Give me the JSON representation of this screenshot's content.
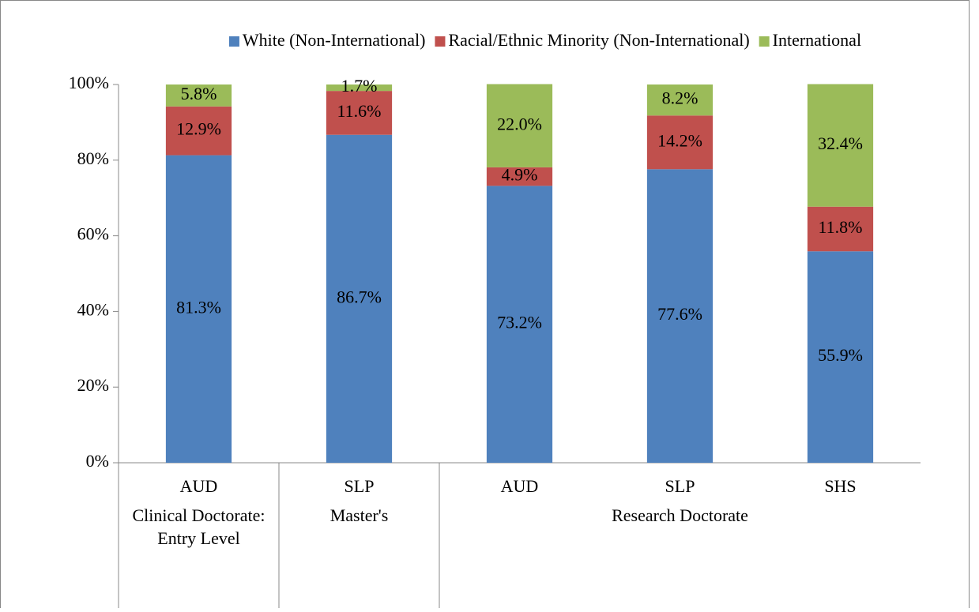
{
  "chart_data": {
    "type": "stacked_bar",
    "categories": [
      "AUD",
      "SLP",
      "AUD",
      "SLP",
      "SHS"
    ],
    "category_groups": [
      "Clinical Doctorate: Entry Level",
      "Master's",
      "Research Doctorate",
      "Research Doctorate",
      "Research Doctorate"
    ],
    "series": [
      {
        "name": "White (Non-International)",
        "color": "#4f81bd",
        "values": [
          81.3,
          86.7,
          73.2,
          77.6,
          55.9
        ],
        "value_labels": [
          "81.3%",
          "86.7%",
          "73.2%",
          "77.6%",
          "55.9%"
        ]
      },
      {
        "name": "Racial/Ethnic Minority (Non-International)",
        "color": "#c0504d",
        "values": [
          12.9,
          11.6,
          4.9,
          14.2,
          11.8
        ],
        "value_labels": [
          "12.9%",
          "11.6%",
          "4.9%",
          "14.2%",
          "11.8%"
        ]
      },
      {
        "name": "International",
        "color": "#9bbb59",
        "values": [
          5.8,
          1.7,
          22.0,
          8.2,
          32.4
        ],
        "value_labels": [
          "5.8%",
          "1.7%",
          "22.0%",
          "8.2%",
          "32.4%"
        ]
      }
    ],
    "ylim": [
      0,
      100
    ],
    "yticks": [
      {
        "value": 0,
        "label": "0%"
      },
      {
        "value": 20,
        "label": "20%"
      },
      {
        "value": 40,
        "label": "40%"
      },
      {
        "value": 60,
        "label": "60%"
      },
      {
        "value": 80,
        "label": "80%"
      },
      {
        "value": 100,
        "label": "100%"
      }
    ],
    "legend": "top"
  }
}
